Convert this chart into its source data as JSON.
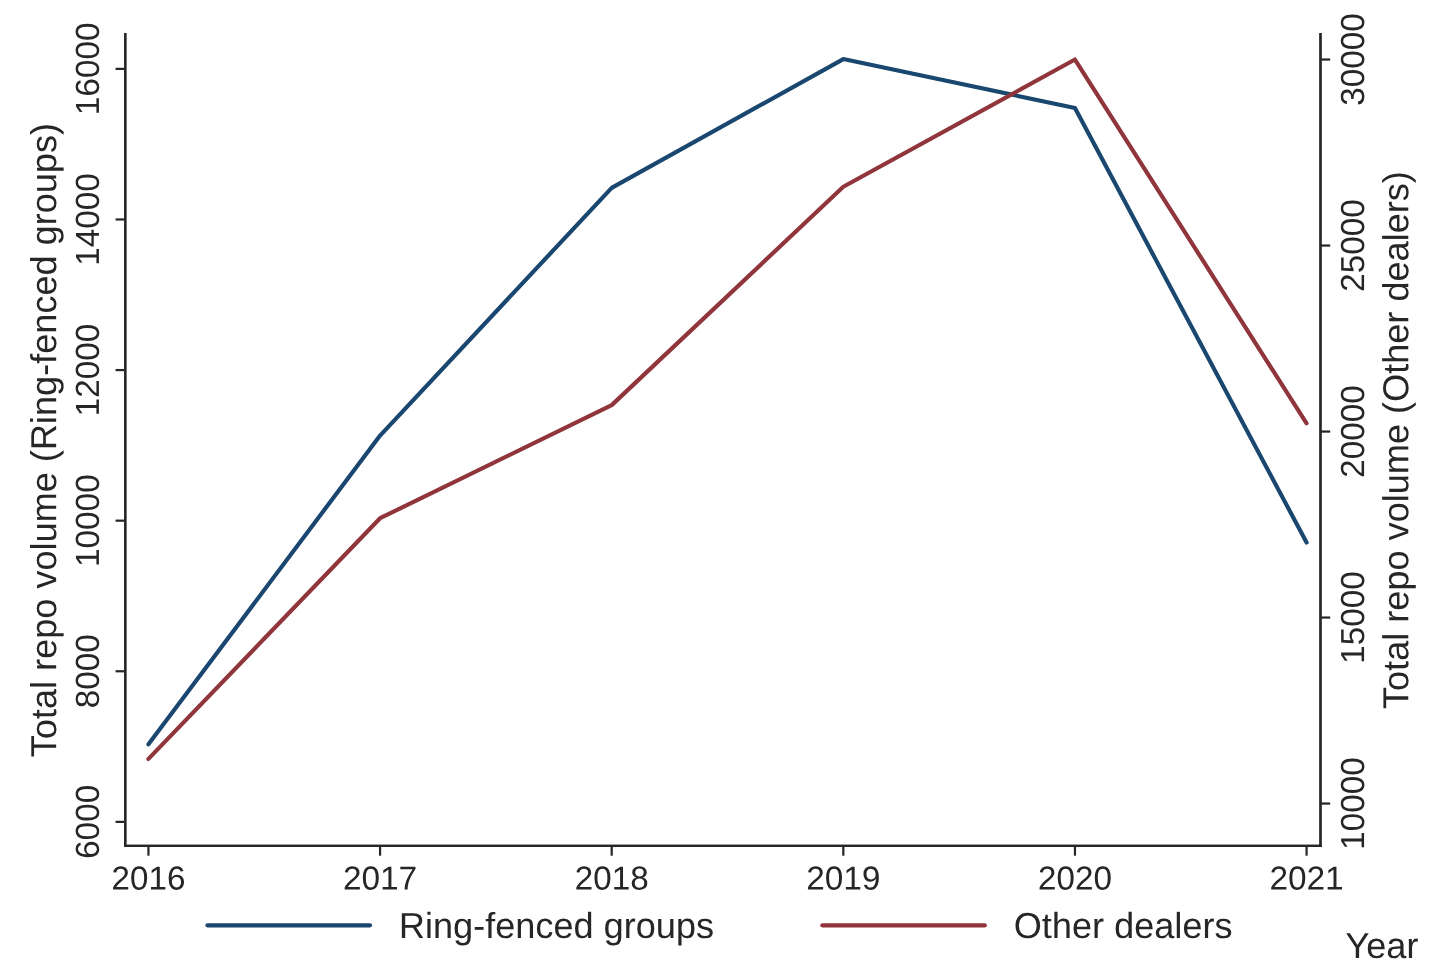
{
  "chart_data": {
    "type": "line",
    "xlabel": "Year",
    "ylabel": "Total repo volume (Ring-fenced groups)",
    "y2label": "Total repo volume (Other dealers)",
    "x": [
      2016,
      2017,
      2018,
      2019,
      2020,
      2021
    ],
    "series": [
      {
        "name": "Ring-fenced groups",
        "color": "#1a476f",
        "values": [
          7030,
          11130,
          14420,
          16130,
          15480,
          9710
        ]
      },
      {
        "name": "Other dealers",
        "color": "#90353b",
        "axis": "y2",
        "values": [
          11200,
          17670,
          20710,
          26580,
          30000,
          20220
        ]
      }
    ],
    "xlim": [
      2015.9,
      2021.06
    ],
    "xticks": [
      2016,
      2017,
      2018,
      2019,
      2020,
      2021
    ],
    "ylim": [
      5680,
      16460
    ],
    "yticks": [
      6000,
      8000,
      10000,
      12000,
      14000,
      16000
    ],
    "y2lim": [
      8860,
      30680
    ],
    "y2ticks": [
      10000,
      15000,
      20000,
      25000,
      30000
    ],
    "grid": false,
    "legend": "bottom",
    "marker": "none",
    "line_style": "solid"
  }
}
